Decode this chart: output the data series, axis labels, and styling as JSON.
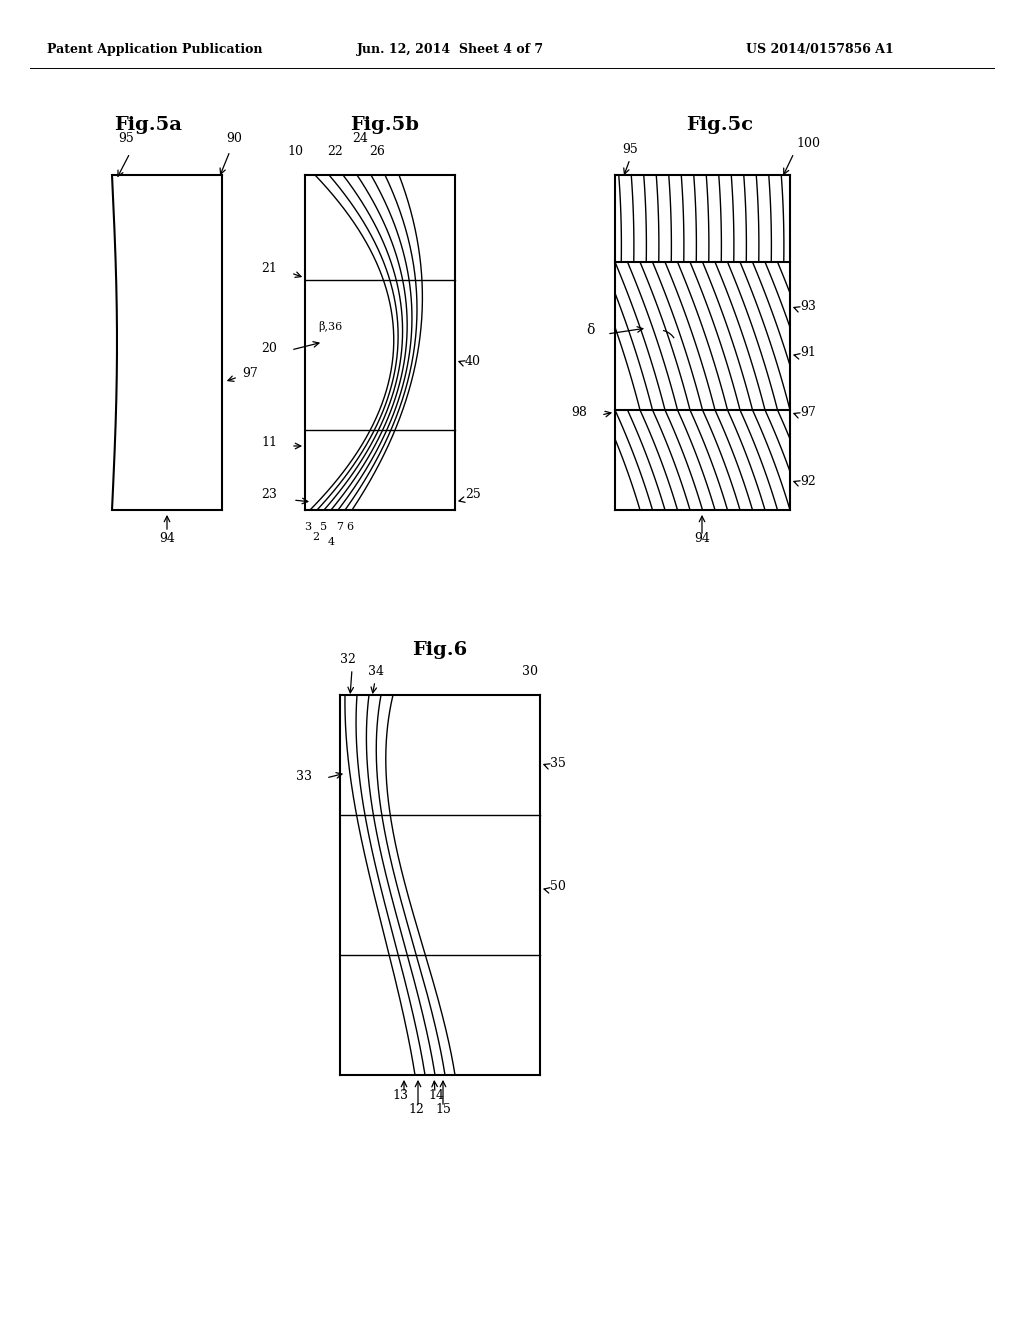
{
  "bg_color": "#ffffff",
  "header_left": "Patent Application Publication",
  "header_mid": "Jun. 12, 2014  Sheet 4 of 7",
  "header_right": "US 2014/0157856 A1",
  "fig5a_title": "Fig.5a",
  "fig5b_title": "Fig.5b",
  "fig5c_title": "Fig.5c",
  "fig6_title": "Fig.6"
}
